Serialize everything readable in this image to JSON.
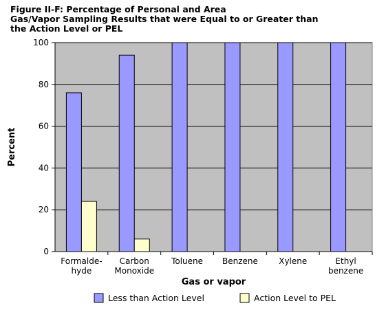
{
  "chart_data": {
    "type": "bar",
    "title_lines": [
      "Figure II-F: Percentage of Personal and Area",
      "Gas/Vapor Sampling Results that were Equal to or Greater than",
      "the Action Level or PEL"
    ],
    "xlabel": "Gas or vapor",
    "ylabel": "Percent",
    "ylim": [
      0,
      100
    ],
    "yticks": [
      0,
      20,
      40,
      60,
      80,
      100
    ],
    "categories": [
      [
        "Formalde-",
        "hyde"
      ],
      [
        "Carbon",
        "Monoxide"
      ],
      [
        "Toluene"
      ],
      [
        "Benzene"
      ],
      [
        "Xylene"
      ],
      [
        "Ethyl",
        "benzene"
      ]
    ],
    "series": [
      {
        "name": "Less than Action Level",
        "color": "#9999ff",
        "values": [
          76,
          94,
          100,
          100,
          100,
          100
        ]
      },
      {
        "name": "Action Level to PEL",
        "color": "#ffffcc",
        "values": [
          24,
          6,
          0,
          0,
          0,
          0
        ]
      }
    ],
    "grid": true,
    "plot_background": "#c0c0c0",
    "legend_position": "bottom"
  }
}
